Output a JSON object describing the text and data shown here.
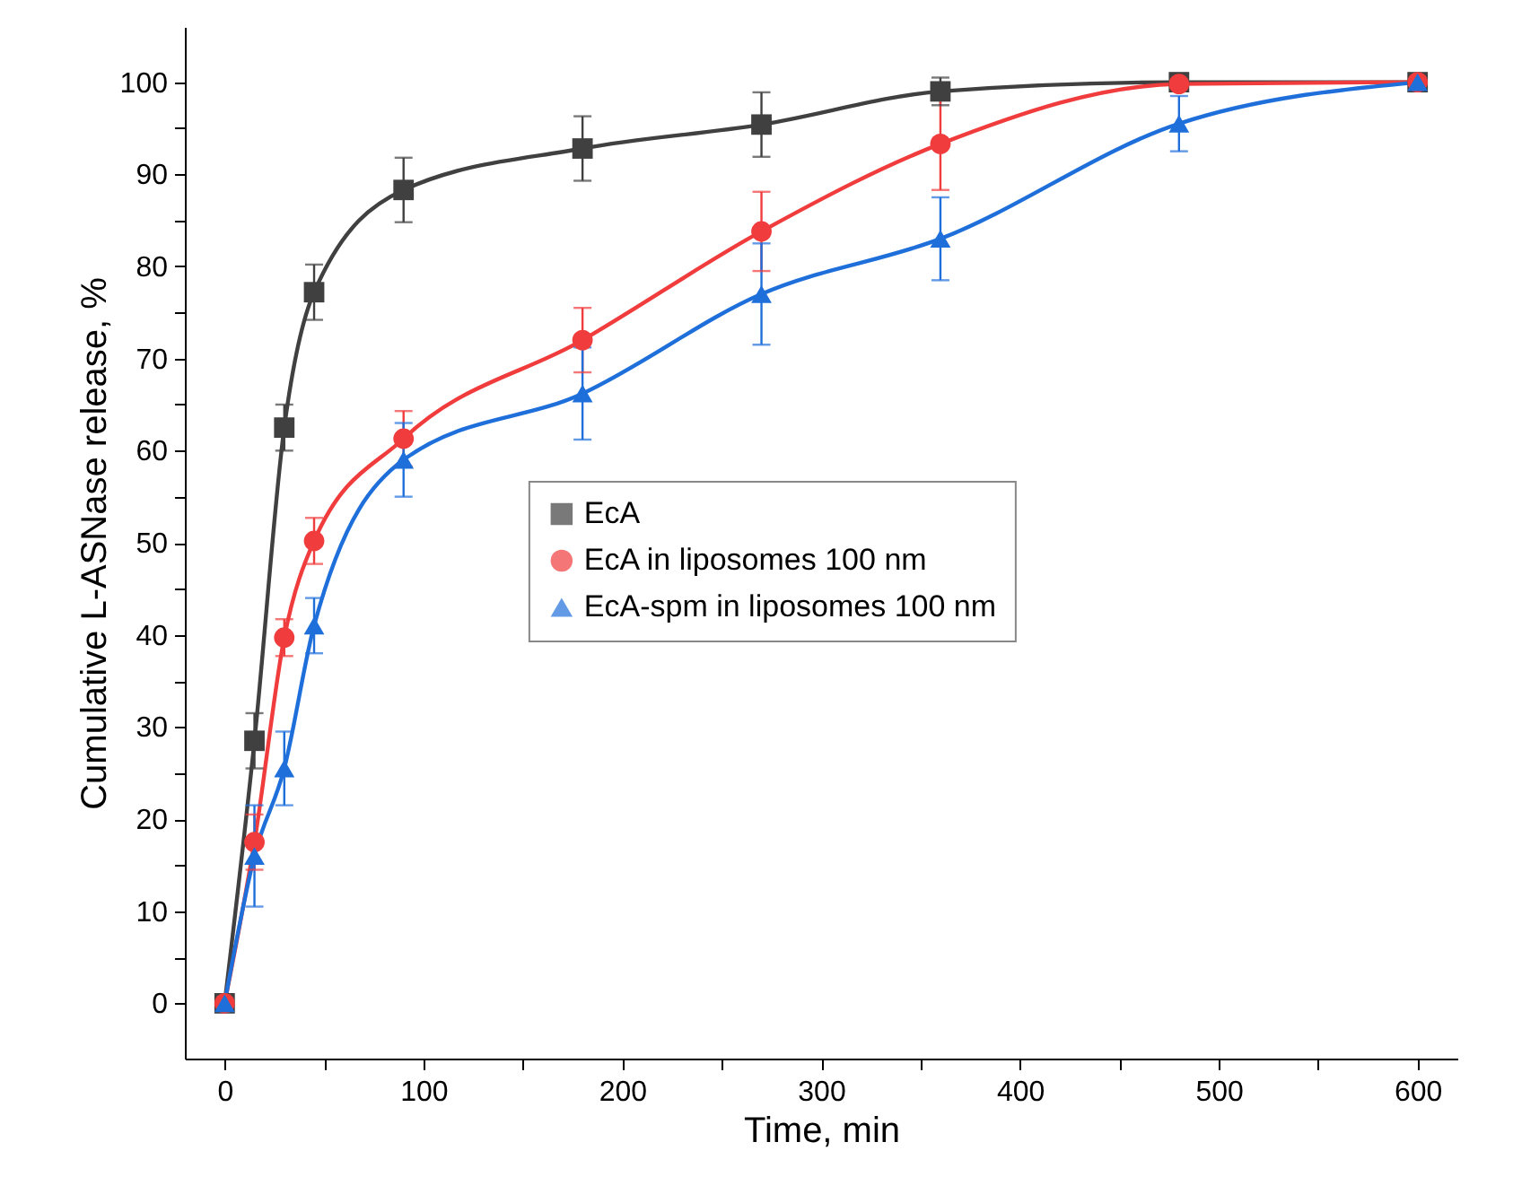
{
  "chart_data": {
    "type": "line",
    "xlabel": "Time, min",
    "ylabel": "Cumulative L-ASNase release, %",
    "x": [
      0,
      15,
      30,
      45,
      90,
      180,
      270,
      360,
      480,
      600
    ],
    "xlim": [
      -20,
      620
    ],
    "ylim": [
      -6,
      106
    ],
    "xticks": [
      0,
      {
        "value": 50,
        "label": null
      },
      100,
      {
        "value": 150,
        "label": null
      },
      200,
      {
        "value": 250,
        "label": null
      },
      300,
      {
        "value": 350,
        "label": null
      },
      400,
      {
        "value": 450,
        "label": null
      },
      500,
      {
        "value": 550,
        "label": null
      },
      600
    ],
    "yticks": [
      0,
      {
        "value": 5,
        "label": null
      },
      10,
      {
        "value": 15,
        "label": null
      },
      20,
      {
        "value": 25,
        "label": null
      },
      30,
      {
        "value": 35,
        "label": null
      },
      40,
      {
        "value": 45,
        "label": null
      },
      50,
      {
        "value": 55,
        "label": null
      },
      60,
      {
        "value": 65,
        "label": null
      },
      70,
      {
        "value": 75,
        "label": null
      },
      80,
      {
        "value": 85,
        "label": null
      },
      90,
      {
        "value": 95,
        "label": null
      },
      100
    ],
    "legend": "right",
    "grid": false,
    "line_style": "solid",
    "series": [
      {
        "name": "EcA",
        "color": "#404040",
        "marker": "square",
        "values": [
          0,
          28.5,
          62.5,
          77.2,
          88.3,
          92.8,
          95.4,
          99,
          100,
          100
        ],
        "errors": [
          null,
          3,
          2.5,
          3,
          3.5,
          3.5,
          3.5,
          1.5,
          0.5,
          null
        ]
      },
      {
        "name": "EcA in liposomes 100 nm",
        "color": "#f03c3c",
        "marker": "circle",
        "values": [
          0,
          17.5,
          39.7,
          50.2,
          61.3,
          72,
          83.8,
          93.3,
          99.8,
          100
        ],
        "errors": [
          null,
          3,
          2,
          2.5,
          3,
          3.5,
          4.3,
          5,
          0.5,
          null
        ]
      },
      {
        "name": "EcA-spm in liposomes 100 nm",
        "color": "#1f6fdb",
        "marker": "triangle",
        "values": [
          0,
          16,
          25.5,
          41,
          59,
          66.2,
          77,
          83,
          95.5,
          100
        ],
        "errors": [
          null,
          5.5,
          4,
          3,
          4,
          5,
          5.5,
          4.5,
          3,
          null
        ]
      }
    ]
  }
}
